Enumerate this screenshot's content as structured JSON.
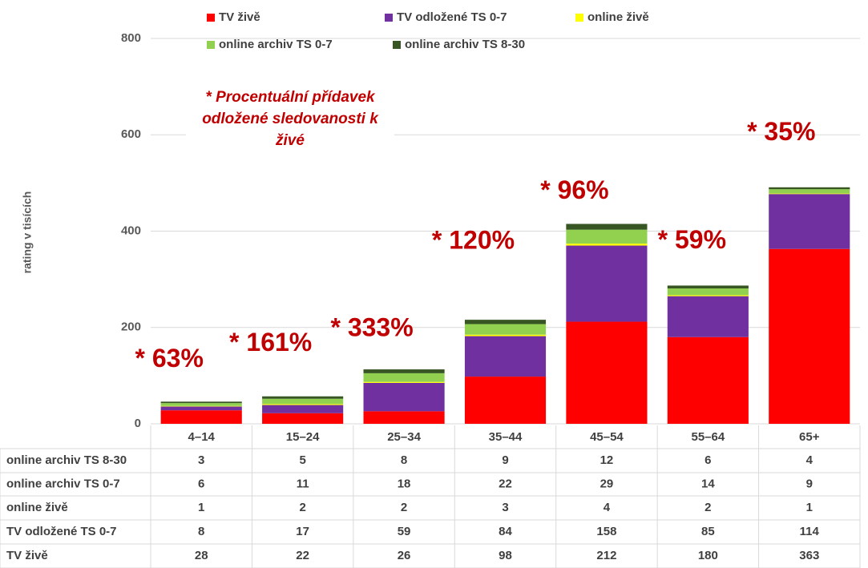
{
  "chart_data": {
    "type": "stacked_bar",
    "y_label": "rating v tisících",
    "note": "* Procentuální přídavek odložené sledovanosti k živé",
    "categories": [
      "4–14",
      "15–24",
      "25–34",
      "35–44",
      "45–54",
      "55–64",
      "65+"
    ],
    "annotations": [
      "* 63%",
      "* 161%",
      "* 333%",
      "* 120%",
      "* 96%",
      "* 59%",
      "* 35%"
    ],
    "series": [
      {
        "name": "TV živě",
        "color": "#ff0000",
        "values": [
          28,
          22,
          26,
          98,
          212,
          180,
          363
        ]
      },
      {
        "name": "TV odložené TS 0-7",
        "color": "#7030a0",
        "values": [
          8,
          17,
          59,
          84,
          158,
          85,
          114
        ]
      },
      {
        "name": "online živě",
        "color": "#ffff00",
        "values": [
          1,
          2,
          2,
          3,
          4,
          2,
          1
        ]
      },
      {
        "name": "online archiv TS 0-7",
        "color": "#92d050",
        "values": [
          6,
          11,
          18,
          22,
          29,
          14,
          9
        ]
      },
      {
        "name": "online archiv TS 8-30",
        "color": "#375623",
        "values": [
          3,
          5,
          8,
          9,
          12,
          6,
          4
        ]
      }
    ],
    "ylim": [
      0,
      800
    ],
    "yticks": [
      0,
      200,
      400,
      600,
      800
    ],
    "grid": true
  }
}
